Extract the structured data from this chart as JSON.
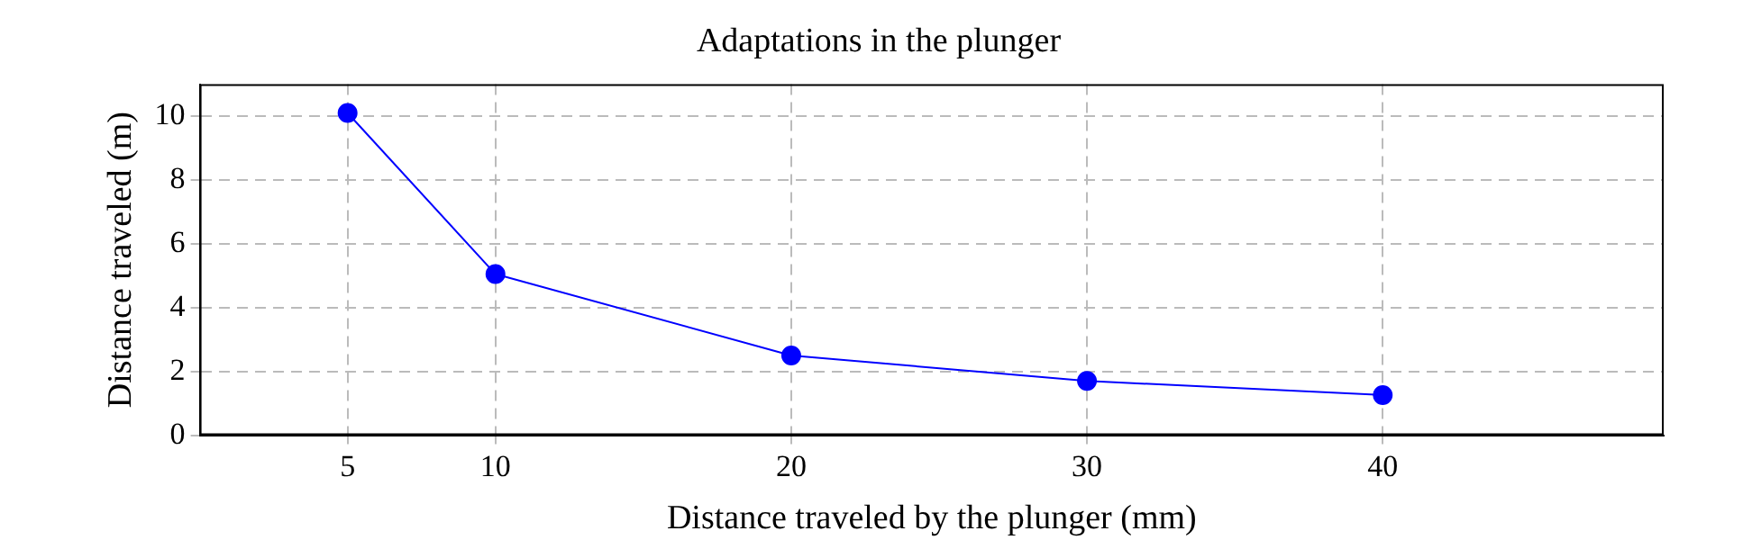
{
  "chart_data": {
    "type": "line",
    "title": "Adaptations in the plunger",
    "xlabel": "Distance traveled by the plunger (mm)",
    "ylabel": "Distance traveled (m)",
    "x": [
      5,
      10,
      20,
      30,
      40
    ],
    "series": [
      {
        "color": "#0000ff",
        "values": [
          10.1,
          5.05,
          2.5,
          1.7,
          1.26
        ]
      }
    ],
    "xlim": [
      0,
      49.5
    ],
    "xticks": [
      5,
      10,
      20,
      30,
      40
    ],
    "ylim": [
      0,
      11
    ],
    "yticks": [
      0,
      2,
      4,
      6,
      8,
      10
    ],
    "grid": true,
    "legend": false,
    "marker": "circle",
    "line_style": "solid"
  }
}
